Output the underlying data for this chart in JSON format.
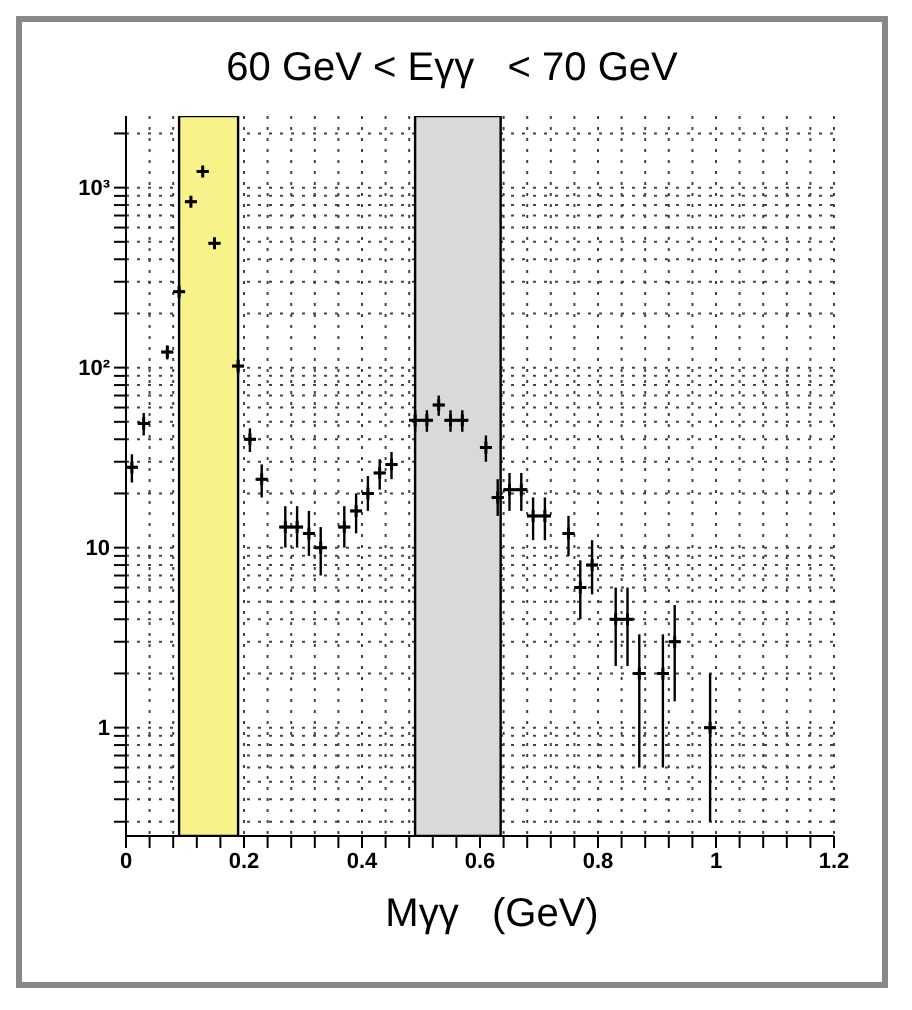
{
  "chart_data": {
    "type": "scatter",
    "title": "60 GeV < Eγγ   < 70 GeV",
    "xlabel": "Mγγ   (GeV)",
    "x": [
      0.01,
      0.03,
      0.07,
      0.09,
      0.11,
      0.13,
      0.15,
      0.19,
      0.21,
      0.23,
      0.27,
      0.29,
      0.31,
      0.33,
      0.37,
      0.39,
      0.41,
      0.43,
      0.45,
      0.49,
      0.51,
      0.53,
      0.55,
      0.57,
      0.61,
      0.63,
      0.65,
      0.67,
      0.69,
      0.71,
      0.75,
      0.77,
      0.79,
      0.83,
      0.85,
      0.87,
      0.91,
      0.93,
      0.99
    ],
    "series": [
      {
        "color": "#000000",
        "values": [
          28,
          49,
          122,
          264,
          835,
          1230,
          491,
          102,
          40,
          24,
          13,
          13,
          12,
          10,
          13,
          16,
          20,
          26,
          29,
          51,
          51,
          62,
          51,
          51,
          36,
          19,
          21,
          21,
          15,
          15,
          12,
          6,
          8,
          4,
          4,
          2,
          2,
          3,
          1
        ],
        "errors": [
          [
            23,
            33
          ],
          [
            42,
            56
          ],
          [
            111,
            133
          ],
          [
            248,
            280
          ],
          [
            806,
            864
          ],
          [
            1195,
            1265
          ],
          [
            469,
            513
          ],
          [
            92,
            112
          ],
          [
            34,
            46
          ],
          [
            19,
            29
          ],
          [
            10,
            17
          ],
          [
            10,
            17
          ],
          [
            9,
            16
          ],
          [
            7,
            13
          ],
          [
            10,
            17
          ],
          [
            12,
            20
          ],
          [
            16,
            25
          ],
          [
            21,
            31
          ],
          [
            24,
            34
          ],
          [
            44,
            58
          ],
          [
            44,
            58
          ],
          [
            54,
            70
          ],
          [
            44,
            58
          ],
          [
            44,
            58
          ],
          [
            30,
            42
          ],
          [
            15,
            24
          ],
          [
            16,
            26
          ],
          [
            16,
            26
          ],
          [
            11,
            19
          ],
          [
            11,
            19
          ],
          [
            9,
            15
          ],
          [
            4,
            8.5
          ],
          [
            5.5,
            11
          ],
          [
            2.2,
            6
          ],
          [
            2.2,
            6
          ],
          [
            0.6,
            3.3
          ],
          [
            0.6,
            3.3
          ],
          [
            1.4,
            4.8
          ],
          [
            0.3,
            2
          ]
        ],
        "xerrors": [
          0.01,
          0.01,
          0.01,
          0.01,
          0.01,
          0.01,
          0.01,
          0.01,
          0.01,
          0.01,
          0.01,
          0.01,
          0.01,
          0.01,
          0.01,
          0.01,
          0.01,
          0.01,
          0.01,
          0.01,
          0.01,
          0.01,
          0.01,
          0.01,
          0.01,
          0.01,
          0.01,
          0.01,
          0.01,
          0.01,
          0.01,
          0.01,
          0.01,
          0.01,
          0.01,
          0.01,
          0.01,
          0.01,
          0.01
        ]
      }
    ],
    "xlim": [
      0,
      1.2
    ],
    "xticks": [
      0,
      {
        "value": 0.04,
        "label": null
      },
      {
        "value": 0.08,
        "label": null
      },
      {
        "value": 0.12,
        "label": null
      },
      {
        "value": 0.16,
        "label": null
      },
      0.2,
      {
        "value": 0.24,
        "label": null
      },
      {
        "value": 0.28,
        "label": null
      },
      {
        "value": 0.32,
        "label": null
      },
      {
        "value": 0.36,
        "label": null
      },
      0.4,
      {
        "value": 0.44,
        "label": null
      },
      {
        "value": 0.48,
        "label": null
      },
      {
        "value": 0.52,
        "label": null
      },
      {
        "value": 0.56,
        "label": null
      },
      0.6,
      {
        "value": 0.64,
        "label": null
      },
      {
        "value": 0.68,
        "label": null
      },
      {
        "value": 0.72,
        "label": null
      },
      {
        "value": 0.76,
        "label": null
      },
      0.8,
      {
        "value": 0.84,
        "label": null
      },
      {
        "value": 0.88,
        "label": null
      },
      {
        "value": 0.92,
        "label": null
      },
      {
        "value": 0.96,
        "label": null
      },
      1,
      {
        "value": 1.04,
        "label": null
      },
      {
        "value": 1.08,
        "label": null
      },
      {
        "value": 1.12,
        "label": null
      },
      {
        "value": 1.16,
        "label": null
      },
      1.2
    ],
    "ylim": [
      0.25,
      2500
    ],
    "log": "y",
    "yticks": [
      {
        "value": 0.3,
        "label": null
      },
      {
        "value": 0.4,
        "label": null
      },
      {
        "value": 0.5,
        "label": null
      },
      {
        "value": 0.6,
        "label": null
      },
      {
        "value": 0.7,
        "label": null
      },
      {
        "value": 0.8,
        "label": null
      },
      {
        "value": 0.9,
        "label": null
      },
      1,
      {
        "value": 2,
        "label": null
      },
      {
        "value": 3,
        "label": null
      },
      {
        "value": 4,
        "label": null
      },
      {
        "value": 5,
        "label": null
      },
      {
        "value": 6,
        "label": null
      },
      {
        "value": 7,
        "label": null
      },
      {
        "value": 8,
        "label": null
      },
      {
        "value": 9,
        "label": null
      },
      10,
      {
        "value": 20,
        "label": null
      },
      {
        "value": 30,
        "label": null
      },
      {
        "value": 40,
        "label": null
      },
      {
        "value": 50,
        "label": null
      },
      {
        "value": 60,
        "label": null
      },
      {
        "value": 70,
        "label": null
      },
      {
        "value": 80,
        "label": null
      },
      {
        "value": 90,
        "label": null
      },
      {
        "value": 100,
        "label": "10²"
      },
      {
        "value": 200,
        "label": null
      },
      {
        "value": 300,
        "label": null
      },
      {
        "value": 400,
        "label": null
      },
      {
        "value": 500,
        "label": null
      },
      {
        "value": 600,
        "label": null
      },
      {
        "value": 700,
        "label": null
      },
      {
        "value": 800,
        "label": null
      },
      {
        "value": 900,
        "label": null
      },
      {
        "value": 1000,
        "label": "10³"
      },
      {
        "value": 2000,
        "label": null
      }
    ],
    "bands": [
      {
        "axis": "x",
        "from": 0.09,
        "to": 0.19,
        "color": "#f7f38a"
      },
      {
        "axis": "x",
        "from": 0.49,
        "to": 0.635,
        "color": "#d9d9d9"
      }
    ],
    "grid": true,
    "marker": "cross"
  }
}
